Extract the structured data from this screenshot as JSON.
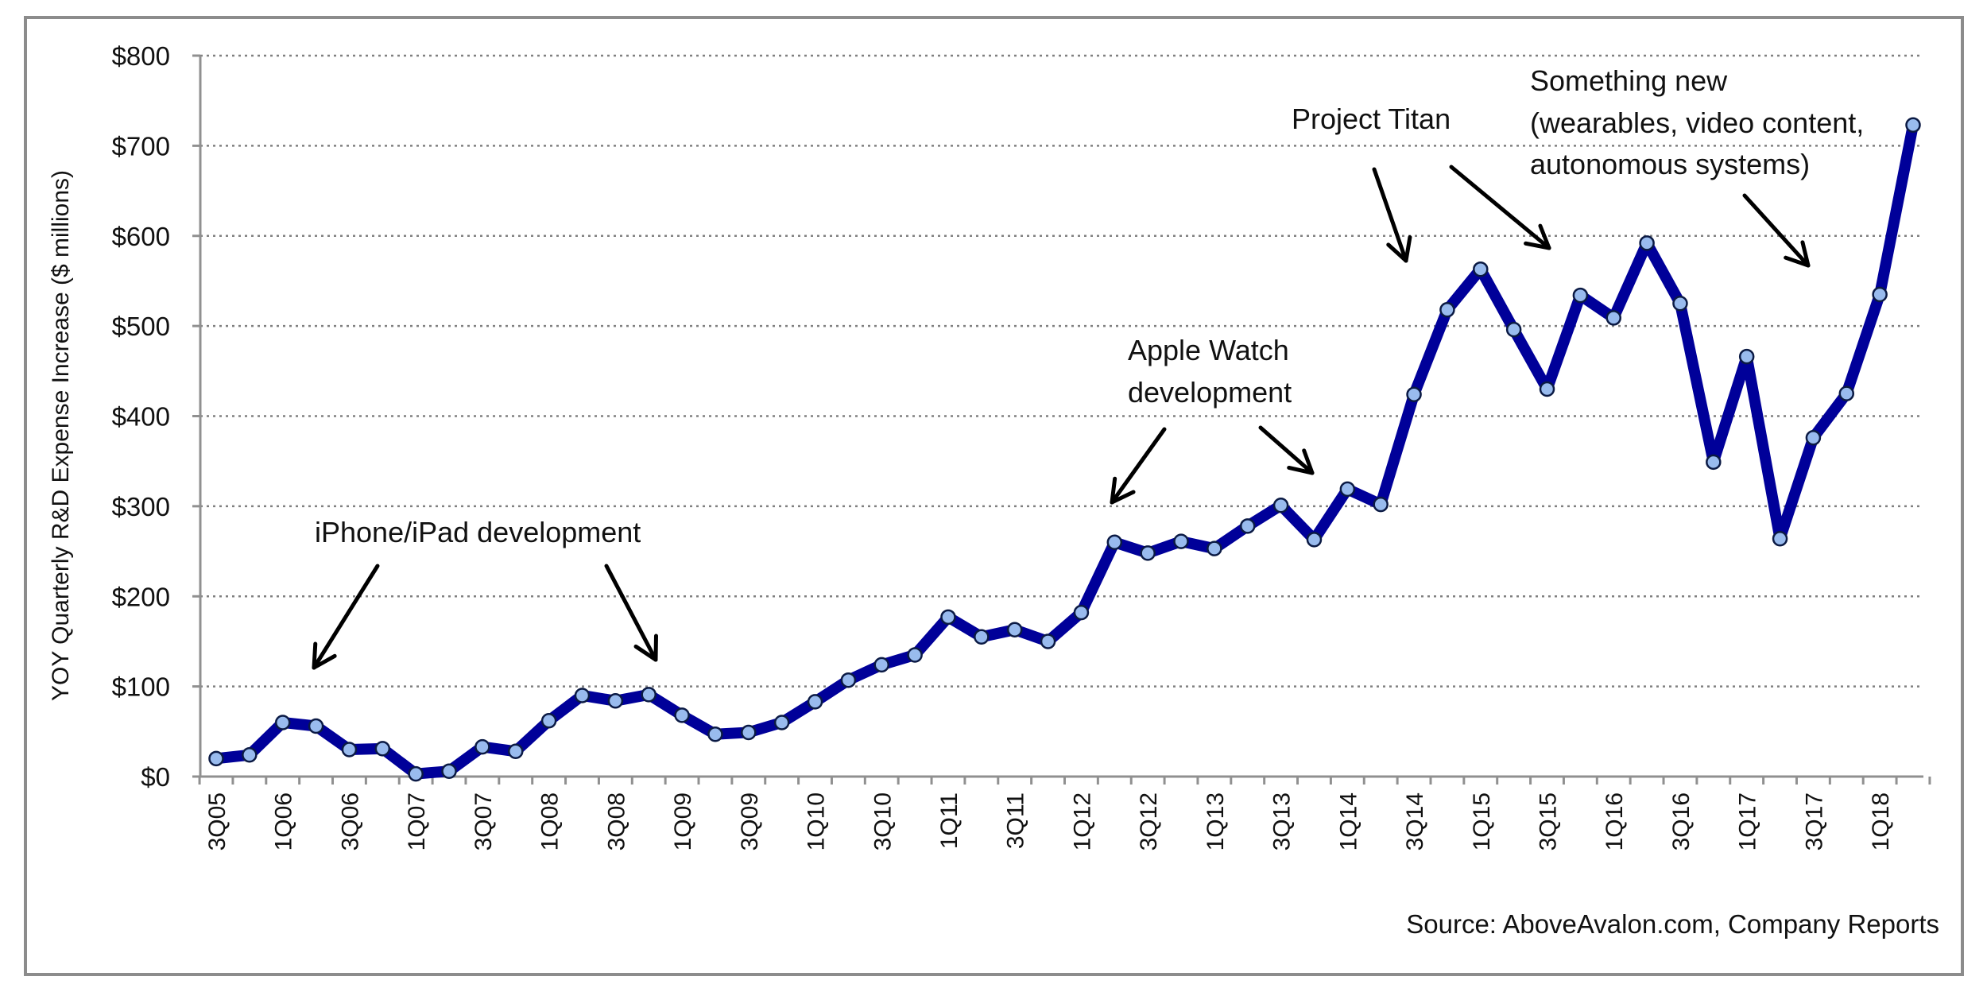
{
  "chart_data": {
    "type": "line",
    "title": "",
    "xlabel": "",
    "ylabel": "YOY Quarterly R&D Expense Increase ($ millions)",
    "ylim": [
      0,
      800
    ],
    "y_ticks": [
      0,
      100,
      200,
      300,
      400,
      500,
      600,
      700,
      800
    ],
    "y_tick_labels": [
      "$0",
      "$100",
      "$200",
      "$300",
      "$400",
      "$500",
      "$600",
      "$700",
      "$800"
    ],
    "grid": "horizontal dotted",
    "x": [
      "3Q05",
      "4Q05",
      "1Q06",
      "2Q06",
      "3Q06",
      "4Q06",
      "1Q07",
      "2Q07",
      "3Q07",
      "4Q07",
      "1Q08",
      "2Q08",
      "3Q08",
      "4Q08",
      "1Q09",
      "2Q09",
      "3Q09",
      "4Q09",
      "1Q10",
      "2Q10",
      "3Q10",
      "4Q10",
      "1Q11",
      "2Q11",
      "3Q11",
      "4Q11",
      "1Q12",
      "2Q12",
      "3Q12",
      "4Q12",
      "1Q13",
      "2Q13",
      "3Q13",
      "4Q13",
      "1Q14",
      "2Q14",
      "3Q14",
      "4Q14",
      "1Q15",
      "2Q15",
      "3Q15",
      "4Q15",
      "1Q16",
      "2Q16",
      "3Q16",
      "4Q16",
      "1Q17",
      "2Q17",
      "3Q17",
      "4Q17",
      "1Q18",
      "2Q18"
    ],
    "x_tick_labels": [
      "3Q05",
      "1Q06",
      "3Q06",
      "1Q07",
      "3Q07",
      "1Q08",
      "3Q08",
      "1Q09",
      "3Q09",
      "1Q10",
      "3Q10",
      "1Q11",
      "3Q11",
      "1Q12",
      "3Q12",
      "1Q13",
      "3Q13",
      "1Q14",
      "3Q14",
      "1Q15",
      "3Q15",
      "1Q16",
      "3Q16",
      "1Q17",
      "3Q17",
      "1Q18"
    ],
    "series": [
      {
        "values": [
          20,
          24,
          60,
          56,
          30,
          31,
          3,
          6,
          33,
          28,
          62,
          90,
          84,
          91,
          68,
          47,
          49,
          60,
          83,
          107,
          124,
          135,
          177,
          155,
          163,
          150,
          182,
          260,
          248,
          261,
          253,
          278,
          301,
          263,
          319,
          302,
          424,
          518,
          563,
          496,
          430,
          534,
          509,
          592,
          525,
          349,
          466,
          264,
          376,
          425,
          535,
          723
        ],
        "color": "#000099",
        "marker_color": "#99bbee"
      }
    ],
    "annotations": [
      {
        "text": "iPhone/iPad development"
      },
      {
        "text": "Apple Watch development"
      },
      {
        "text": "Project Titan"
      },
      {
        "text": "Something new (wearables, video content, autonomous systems)"
      }
    ]
  },
  "annotation_lines": {
    "iphone": [
      "iPhone/iPad development"
    ],
    "watch": [
      "Apple Watch",
      "development"
    ],
    "titan": [
      "Project Titan"
    ],
    "newthing": [
      "Something new",
      "(wearables, video content,",
      "autonomous systems)"
    ]
  },
  "source": "Source: AboveAvalon.com, Company Reports",
  "colors": {
    "line": "#000099",
    "marker_fill": "#99bbee",
    "marker_stroke": "#0b1a44",
    "frame": "#8c8c8c",
    "grid": "#808080",
    "axis": "#909090"
  }
}
